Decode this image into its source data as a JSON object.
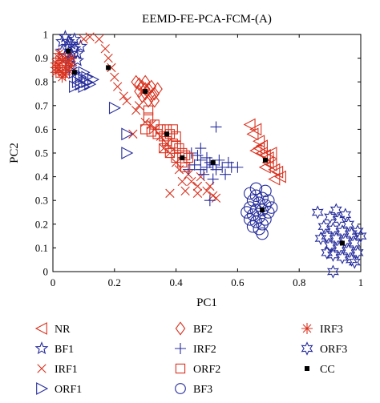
{
  "colors": {
    "red": "#d9321f",
    "blue": "#262d9c",
    "black": "#000000"
  },
  "chart_data": {
    "type": "scatter",
    "title": "EEMD-FE-PCA-FCM-(A)",
    "xlabel": "PC1",
    "ylabel": "PC2",
    "xlim": [
      0,
      1
    ],
    "ylim": [
      0,
      1
    ],
    "xticks": [
      "0",
      "0.2",
      "0.4",
      "0.6",
      "0.8",
      "1"
    ],
    "yticks": [
      "0",
      "0.1",
      "0.2",
      "0.3",
      "0.4",
      "0.5",
      "0.6",
      "0.7",
      "0.8",
      "0.9",
      "1"
    ],
    "grid": false,
    "legend_position": "bottom",
    "series": [
      {
        "name": "NR",
        "marker": "triangle-left",
        "color": "red",
        "points": [
          [
            0.64,
            0.62
          ],
          [
            0.66,
            0.6
          ],
          [
            0.65,
            0.58
          ],
          [
            0.67,
            0.55
          ],
          [
            0.68,
            0.53
          ],
          [
            0.66,
            0.51
          ],
          [
            0.68,
            0.5
          ],
          [
            0.69,
            0.49
          ],
          [
            0.7,
            0.48
          ],
          [
            0.7,
            0.46
          ],
          [
            0.71,
            0.45
          ],
          [
            0.72,
            0.43
          ],
          [
            0.73,
            0.42
          ],
          [
            0.74,
            0.4
          ],
          [
            0.72,
            0.39
          ],
          [
            0.67,
            0.52
          ],
          [
            0.71,
            0.5
          ],
          [
            0.69,
            0.44
          ]
        ]
      },
      {
        "name": "BF1",
        "marker": "star5",
        "color": "blue",
        "points": [
          [
            0.04,
            0.99
          ],
          [
            0.05,
            0.97
          ],
          [
            0.06,
            0.96
          ],
          [
            0.05,
            0.95
          ],
          [
            0.07,
            0.94
          ],
          [
            0.03,
            0.93
          ],
          [
            0.06,
            0.92
          ],
          [
            0.08,
            0.92
          ],
          [
            0.04,
            0.91
          ],
          [
            0.06,
            0.9
          ],
          [
            0.08,
            0.89
          ],
          [
            0.05,
            0.88
          ],
          [
            0.03,
            0.97
          ],
          [
            0.07,
            0.98
          ],
          [
            0.09,
            0.95
          ]
        ]
      },
      {
        "name": "IRF1",
        "marker": "x",
        "color": "red",
        "points": [
          [
            0.1,
            0.98
          ],
          [
            0.12,
            0.99
          ],
          [
            0.15,
            0.98
          ],
          [
            0.17,
            0.94
          ],
          [
            0.18,
            0.9
          ],
          [
            0.19,
            0.86
          ],
          [
            0.2,
            0.82
          ],
          [
            0.21,
            0.78
          ],
          [
            0.24,
            0.72
          ],
          [
            0.27,
            0.68
          ],
          [
            0.3,
            0.63
          ],
          [
            0.33,
            0.6
          ],
          [
            0.35,
            0.57
          ],
          [
            0.37,
            0.54
          ],
          [
            0.38,
            0.5
          ],
          [
            0.4,
            0.46
          ],
          [
            0.41,
            0.43
          ],
          [
            0.44,
            0.41
          ],
          [
            0.45,
            0.38
          ],
          [
            0.47,
            0.36
          ],
          [
            0.5,
            0.34
          ],
          [
            0.52,
            0.32
          ],
          [
            0.42,
            0.38
          ],
          [
            0.43,
            0.34
          ],
          [
            0.47,
            0.33
          ],
          [
            0.51,
            0.36
          ],
          [
            0.32,
            0.62
          ],
          [
            0.28,
            0.7
          ],
          [
            0.23,
            0.74
          ],
          [
            0.36,
            0.52
          ],
          [
            0.48,
            0.4
          ],
          [
            0.38,
            0.33
          ],
          [
            0.53,
            0.31
          ],
          [
            0.26,
            0.58
          ]
        ]
      },
      {
        "name": "ORF1",
        "marker": "triangle-right",
        "color": "blue",
        "points": [
          [
            0.06,
            0.86
          ],
          [
            0.07,
            0.84
          ],
          [
            0.08,
            0.82
          ],
          [
            0.08,
            0.8
          ],
          [
            0.09,
            0.79
          ],
          [
            0.1,
            0.78
          ],
          [
            0.11,
            0.8
          ],
          [
            0.12,
            0.79
          ],
          [
            0.09,
            0.82
          ],
          [
            0.07,
            0.78
          ],
          [
            0.13,
            0.81
          ],
          [
            0.1,
            0.84
          ],
          [
            0.2,
            0.69
          ],
          [
            0.24,
            0.58
          ],
          [
            0.24,
            0.5
          ],
          [
            0.11,
            0.82
          ]
        ]
      },
      {
        "name": "BF2",
        "marker": "diamond",
        "color": "red",
        "points": [
          [
            0.27,
            0.8
          ],
          [
            0.28,
            0.79
          ],
          [
            0.29,
            0.78
          ],
          [
            0.3,
            0.77
          ],
          [
            0.31,
            0.77
          ],
          [
            0.3,
            0.75
          ],
          [
            0.32,
            0.74
          ],
          [
            0.29,
            0.74
          ],
          [
            0.31,
            0.72
          ],
          [
            0.33,
            0.75
          ],
          [
            0.28,
            0.76
          ],
          [
            0.3,
            0.8
          ],
          [
            0.32,
            0.78
          ],
          [
            0.34,
            0.77
          ],
          [
            0.33,
            0.72
          ]
        ]
      },
      {
        "name": "IRF2",
        "marker": "plus",
        "color": "blue",
        "points": [
          [
            0.45,
            0.5
          ],
          [
            0.47,
            0.49
          ],
          [
            0.48,
            0.47
          ],
          [
            0.5,
            0.48
          ],
          [
            0.51,
            0.46
          ],
          [
            0.5,
            0.44
          ],
          [
            0.52,
            0.45
          ],
          [
            0.54,
            0.47
          ],
          [
            0.53,
            0.43
          ],
          [
            0.55,
            0.44
          ],
          [
            0.57,
            0.46
          ],
          [
            0.58,
            0.44
          ],
          [
            0.6,
            0.44
          ],
          [
            0.56,
            0.41
          ],
          [
            0.48,
            0.43
          ],
          [
            0.52,
            0.39
          ],
          [
            0.46,
            0.45
          ],
          [
            0.53,
            0.61
          ],
          [
            0.48,
            0.52
          ],
          [
            0.44,
            0.43
          ],
          [
            0.51,
            0.3
          ],
          [
            0.49,
            0.41
          ]
        ]
      },
      {
        "name": "ORF2",
        "marker": "square",
        "color": "red",
        "points": [
          [
            0.3,
            0.6
          ],
          [
            0.32,
            0.59
          ],
          [
            0.34,
            0.58
          ],
          [
            0.35,
            0.6
          ],
          [
            0.36,
            0.57
          ],
          [
            0.38,
            0.58
          ],
          [
            0.37,
            0.55
          ],
          [
            0.39,
            0.54
          ],
          [
            0.4,
            0.53
          ],
          [
            0.41,
            0.52
          ],
          [
            0.42,
            0.5
          ],
          [
            0.43,
            0.49
          ],
          [
            0.44,
            0.48
          ],
          [
            0.4,
            0.48
          ],
          [
            0.42,
            0.46
          ],
          [
            0.38,
            0.5
          ],
          [
            0.36,
            0.52
          ],
          [
            0.33,
            0.62
          ],
          [
            0.39,
            0.6
          ],
          [
            0.4,
            0.57
          ],
          [
            0.31,
            0.68
          ],
          [
            0.31,
            0.65
          ],
          [
            0.43,
            0.44
          ],
          [
            0.37,
            0.6
          ]
        ]
      },
      {
        "name": "BF3",
        "marker": "circle",
        "color": "blue",
        "points": [
          [
            0.64,
            0.33
          ],
          [
            0.66,
            0.32
          ],
          [
            0.68,
            0.31
          ],
          [
            0.7,
            0.3
          ],
          [
            0.65,
            0.3
          ],
          [
            0.67,
            0.29
          ],
          [
            0.69,
            0.28
          ],
          [
            0.64,
            0.27
          ],
          [
            0.66,
            0.26
          ],
          [
            0.68,
            0.26
          ],
          [
            0.7,
            0.25
          ],
          [
            0.65,
            0.24
          ],
          [
            0.67,
            0.23
          ],
          [
            0.69,
            0.22
          ],
          [
            0.64,
            0.22
          ],
          [
            0.66,
            0.21
          ],
          [
            0.68,
            0.2
          ],
          [
            0.65,
            0.19
          ],
          [
            0.67,
            0.18
          ],
          [
            0.69,
            0.34
          ],
          [
            0.71,
            0.27
          ],
          [
            0.63,
            0.25
          ],
          [
            0.68,
            0.16
          ],
          [
            0.66,
            0.35
          ]
        ]
      },
      {
        "name": "IRF3",
        "marker": "asterisk",
        "color": "red",
        "points": [
          [
            0.01,
            0.88
          ],
          [
            0.02,
            0.87
          ],
          [
            0.03,
            0.89
          ],
          [
            0.04,
            0.86
          ],
          [
            0.02,
            0.85
          ],
          [
            0.03,
            0.84
          ],
          [
            0.05,
            0.88
          ],
          [
            0.01,
            0.86
          ],
          [
            0.04,
            0.9
          ],
          [
            0.02,
            0.9
          ],
          [
            0.06,
            0.87
          ],
          [
            0.03,
            0.82
          ],
          [
            0.01,
            0.84
          ],
          [
            0.05,
            0.85
          ],
          [
            0.04,
            0.83
          ],
          [
            0.02,
            0.92
          ],
          [
            0.06,
            0.9
          ]
        ]
      },
      {
        "name": "ORF3",
        "marker": "star6",
        "color": "blue",
        "points": [
          [
            0.86,
            0.25
          ],
          [
            0.9,
            0.23
          ],
          [
            0.93,
            0.22
          ],
          [
            0.88,
            0.19
          ],
          [
            0.91,
            0.18
          ],
          [
            0.94,
            0.17
          ],
          [
            0.97,
            0.16
          ],
          [
            0.89,
            0.15
          ],
          [
            0.92,
            0.14
          ],
          [
            0.95,
            0.13
          ],
          [
            0.98,
            0.12
          ],
          [
            0.9,
            0.11
          ],
          [
            0.93,
            0.1
          ],
          [
            0.96,
            0.09
          ],
          [
            0.99,
            0.08
          ],
          [
            0.91,
            0.07
          ],
          [
            0.94,
            0.06
          ],
          [
            0.97,
            0.05
          ],
          [
            0.96,
            0.2
          ],
          [
            1.0,
            0.15
          ],
          [
            0.89,
            0.08
          ],
          [
            0.92,
            0.26
          ],
          [
            0.98,
            0.04
          ],
          [
            0.95,
            0.24
          ],
          [
            0.87,
            0.14
          ],
          [
            0.99,
            0.17
          ],
          [
            0.91,
            0.0
          ]
        ]
      },
      {
        "name": "CC",
        "marker": "filled-square",
        "color": "black",
        "points": [
          [
            0.05,
            0.93
          ],
          [
            0.07,
            0.84
          ],
          [
            0.18,
            0.86
          ],
          [
            0.3,
            0.76
          ],
          [
            0.37,
            0.58
          ],
          [
            0.42,
            0.48
          ],
          [
            0.52,
            0.46
          ],
          [
            0.69,
            0.47
          ],
          [
            0.68,
            0.26
          ],
          [
            0.94,
            0.12
          ]
        ]
      }
    ]
  }
}
